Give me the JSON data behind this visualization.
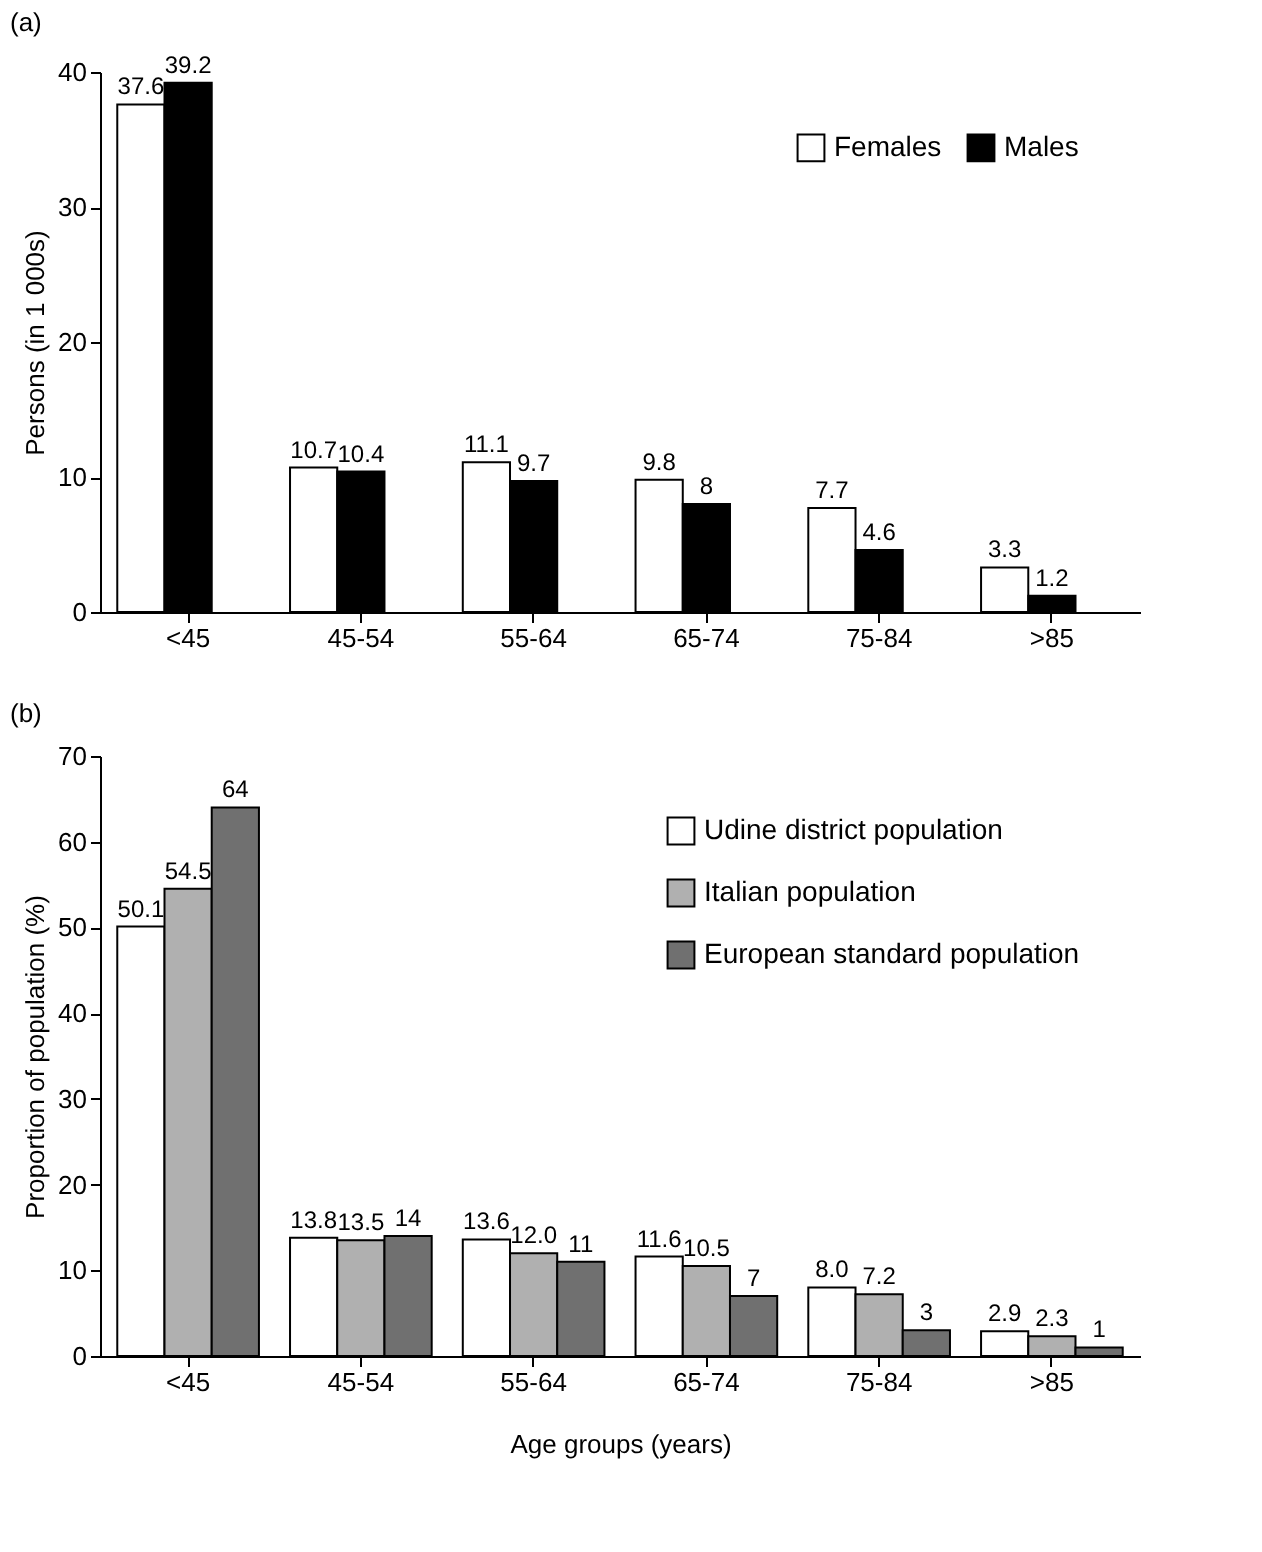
{
  "chart_data": [
    {
      "type": "bar",
      "title": "(a)",
      "ylabel": "Persons (in 1 000s)",
      "categories": [
        "<45",
        "45-54",
        "55-64",
        "65-74",
        "75-84",
        ">85"
      ],
      "ylim": [
        0,
        40
      ],
      "yticks": [
        0,
        10,
        20,
        30,
        40
      ],
      "grid": false,
      "legend": "top right",
      "series": [
        {
          "name": "Females",
          "color": "#ffffff",
          "values": [
            37.6,
            10.7,
            11.1,
            9.8,
            7.7,
            3.3
          ]
        },
        {
          "name": "Males",
          "color": "#000000",
          "values": [
            39.2,
            10.4,
            9.7,
            8,
            4.6,
            1.2
          ]
        }
      ],
      "data_labels": true
    },
    {
      "type": "bar",
      "title": "(b)",
      "ylabel": "Proportion of population (%)",
      "xlabel": "Age groups (years)",
      "categories": [
        "<45",
        "45-54",
        "55-64",
        "65-74",
        "75-84",
        ">85"
      ],
      "ylim": [
        0,
        70
      ],
      "yticks": [
        0,
        10,
        20,
        30,
        40,
        50,
        60,
        70
      ],
      "grid": false,
      "legend": "top right",
      "series": [
        {
          "name": "Udine district population",
          "color": "#ffffff",
          "values": [
            50.1,
            13.8,
            13.6,
            11.6,
            8.0,
            2.9
          ],
          "value_labels": [
            "50.1",
            "13.8",
            "13.6",
            "11.6",
            "8.0",
            "2.9"
          ]
        },
        {
          "name": "Italian population",
          "color": "#b0b0b0",
          "values": [
            54.5,
            13.5,
            12.0,
            10.5,
            7.2,
            2.3
          ],
          "value_labels": [
            "54.5",
            "13.5",
            "12.0",
            "10.5",
            "7.2",
            "2.3"
          ]
        },
        {
          "name": "European standard population",
          "color": "#707070",
          "values": [
            64,
            14,
            11,
            7,
            3,
            1
          ],
          "value_labels": [
            "64",
            "14",
            "11",
            "7",
            "3",
            "1"
          ]
        }
      ]
    }
  ]
}
